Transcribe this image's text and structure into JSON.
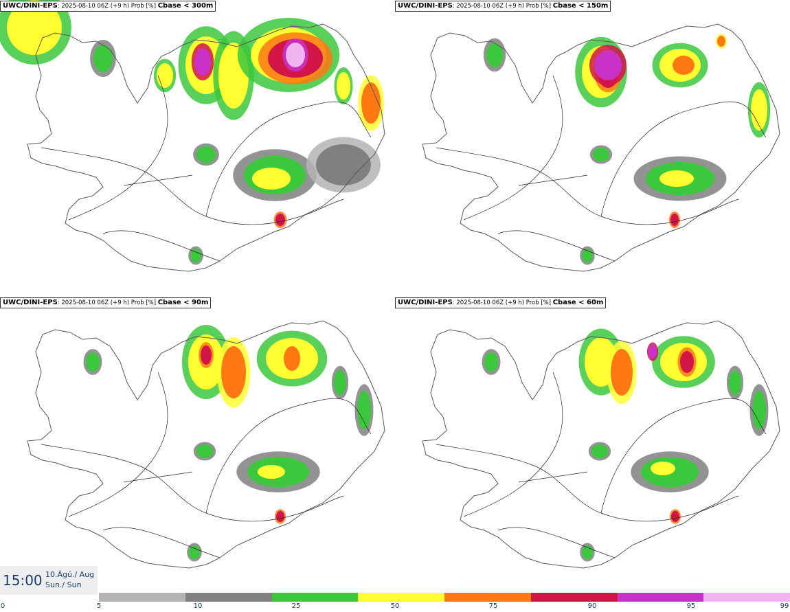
{
  "panels": [
    {
      "product": "UWC/DINI-EPS",
      "info": ": 2025-08-10 06Z (+9 h) Prob [%] ",
      "threshold": "Cbase < 300m"
    },
    {
      "product": "UWC/DINI-EPS",
      "info": ": 2025-08-10 06Z (+9 h) Prob [%] ",
      "threshold": "Cbase < 150m"
    },
    {
      "product": "UWC/DINI-EPS",
      "info": ": 2025-08-10 06Z (+9 h) Prob [%] ",
      "threshold": "Cbase < 90m"
    },
    {
      "product": "UWC/DINI-EPS",
      "info": ": 2025-08-10 06Z (+9 h) Prob [%] ",
      "threshold": "Cbase < 60m"
    }
  ],
  "valid_time": {
    "hour": "15:00",
    "date": "10.Ágú./ Aug",
    "day": "Sun./ Sun"
  },
  "colorbar": {
    "ticks": [
      "0",
      "5",
      "10",
      "25",
      "50",
      "75",
      "90",
      "95",
      "99"
    ],
    "colors": [
      "#b4b4b4",
      "#808080",
      "#3cc83c",
      "#ffff32",
      "#ff7814",
      "#d21446",
      "#c832c8",
      "#f0b4f0"
    ]
  },
  "map_colors": {
    "coast": "#555555",
    "roads": "#222222"
  }
}
